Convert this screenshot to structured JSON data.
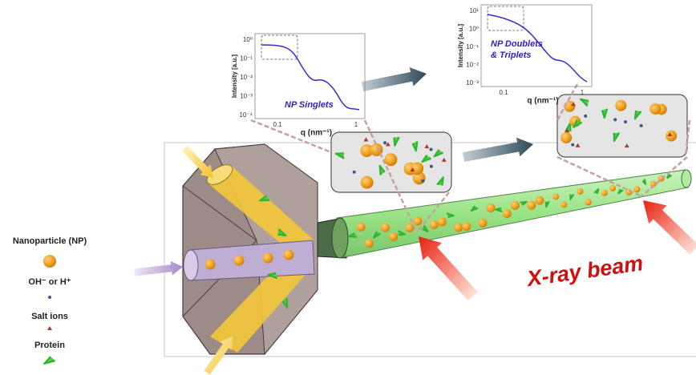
{
  "legend": {
    "items": [
      {
        "label": "Nanoparticle (NP)"
      },
      {
        "label": "OH⁻ or H⁺"
      },
      {
        "label": "Salt ions"
      },
      {
        "label": "Protein"
      }
    ]
  },
  "beam_label": "X-ray beam",
  "plots": [
    {
      "y_label": "Intensity [a.u.]",
      "x_label": "q (nm⁻¹)",
      "yticks": [
        "10⁰",
        "10⁻¹",
        "10⁻²",
        "10⁻³",
        "10⁻⁴"
      ],
      "xticks": [
        "0.1",
        "1"
      ],
      "caption": [
        "NP Singlets"
      ]
    },
    {
      "y_label": "Intensity [a.u.]",
      "x_label": "q (nm⁻¹)",
      "yticks": [
        "10¹",
        "10⁰",
        "10⁻¹",
        "10⁻²",
        "10⁻³"
      ],
      "xticks": [
        "0.1",
        "1"
      ],
      "caption": [
        "NP Doublets",
        "& Triplets"
      ]
    }
  ]
}
